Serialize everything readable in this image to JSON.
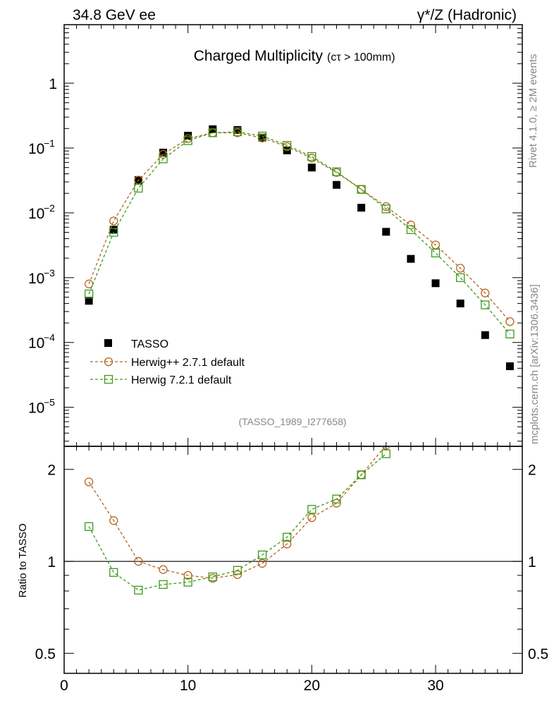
{
  "header": {
    "left": "34.8 GeV ee",
    "right": "γ*/Z (Hadronic)"
  },
  "side_text": {
    "rivet": "Rivet 4.1.0, ≥ 2M events",
    "mcplots": "mcplots.cern.ch [arXiv:1306.3436]"
  },
  "chart_data": [
    {
      "type": "scatter",
      "panel": "main",
      "title": "Charged Multiplicity",
      "title_suffix": "(cτ > 100mm)",
      "analysis_label": "(TASSO_1989_I277658)",
      "yscale": "log",
      "xlim": [
        0,
        37
      ],
      "ylim": [
        2.5e-06,
        8
      ],
      "y_tick_labels": [
        {
          "value": 1,
          "base": "1",
          "exp": ""
        },
        {
          "value": 0.1,
          "base": "10",
          "exp": "−1"
        },
        {
          "value": 0.01,
          "base": "10",
          "exp": "−2"
        },
        {
          "value": 0.001,
          "base": "10",
          "exp": "−3"
        },
        {
          "value": 0.0001,
          "base": "10",
          "exp": "−4"
        },
        {
          "value": 1e-05,
          "base": "10",
          "exp": "−5"
        }
      ],
      "legend_position": "lower-left",
      "series": [
        {
          "name": "TASSO",
          "style": "black-square",
          "color": "#000000",
          "x": [
            2,
            4,
            6,
            8,
            10,
            12,
            14,
            16,
            18,
            20,
            22,
            24,
            26,
            28,
            30,
            32,
            34,
            36
          ],
          "y": [
            0.00044,
            0.0055,
            0.032,
            0.085,
            0.155,
            0.195,
            0.19,
            0.145,
            0.092,
            0.05,
            0.027,
            0.012,
            0.0051,
            0.00195,
            0.00082,
            0.0004,
            0.00013,
            4.3e-05
          ]
        },
        {
          "name": "Herwig++ 2.7.1 default",
          "style": "open-circle-dashed",
          "color": "#b5651d",
          "x": [
            2,
            4,
            6,
            8,
            10,
            12,
            14,
            16,
            18,
            20,
            22,
            24,
            26,
            28,
            30,
            32,
            34,
            36
          ],
          "y": [
            0.0008,
            0.0075,
            0.032,
            0.08,
            0.14,
            0.172,
            0.172,
            0.143,
            0.105,
            0.07,
            0.042,
            0.023,
            0.0125,
            0.0065,
            0.0032,
            0.0014,
            0.00058,
            0.00021
          ]
        },
        {
          "name": "Herwig 7.2.1 default",
          "style": "open-square-dashed",
          "color": "#3a9a1a",
          "x": [
            2,
            4,
            6,
            8,
            10,
            12,
            14,
            16,
            18,
            20,
            22,
            24,
            26,
            28,
            30,
            32,
            34,
            36
          ],
          "y": [
            0.00056,
            0.005,
            0.024,
            0.068,
            0.13,
            0.172,
            0.178,
            0.153,
            0.11,
            0.074,
            0.043,
            0.023,
            0.0115,
            0.0055,
            0.0024,
            0.001,
            0.00038,
            0.000135
          ]
        }
      ]
    },
    {
      "type": "line",
      "panel": "ratio",
      "ylabel": "Ratio to TASSO",
      "yscale": "log",
      "xlim": [
        0,
        37
      ],
      "ylim": [
        0.43,
        2.38
      ],
      "reference_line": 1,
      "y_tick_labels": [
        {
          "value": 2,
          "label": "2"
        },
        {
          "value": 1,
          "label": "1"
        },
        {
          "value": 0.5,
          "label": "0.5"
        }
      ],
      "x_tick_labels": [
        {
          "value": 0,
          "label": "0"
        },
        {
          "value": 10,
          "label": "10"
        },
        {
          "value": 20,
          "label": "20"
        },
        {
          "value": 30,
          "label": "30"
        }
      ],
      "series": [
        {
          "name": "Herwig++ 2.7.1 default",
          "color": "#b5651d",
          "x": [
            2,
            4,
            6,
            8,
            10,
            12,
            14,
            16,
            18,
            20,
            22,
            24,
            26
          ],
          "y": [
            1.82,
            1.36,
            1.0,
            0.94,
            0.9,
            0.88,
            0.905,
            0.985,
            1.14,
            1.39,
            1.55,
            1.92,
            2.4
          ]
        },
        {
          "name": "Herwig 7.2.1 default",
          "color": "#3a9a1a",
          "x": [
            2,
            4,
            6,
            8,
            10,
            12,
            14,
            16,
            18,
            20,
            22,
            24,
            26
          ],
          "y": [
            1.3,
            0.92,
            0.805,
            0.84,
            0.855,
            0.89,
            0.935,
            1.05,
            1.2,
            1.48,
            1.6,
            1.92,
            2.25
          ]
        }
      ]
    }
  ]
}
